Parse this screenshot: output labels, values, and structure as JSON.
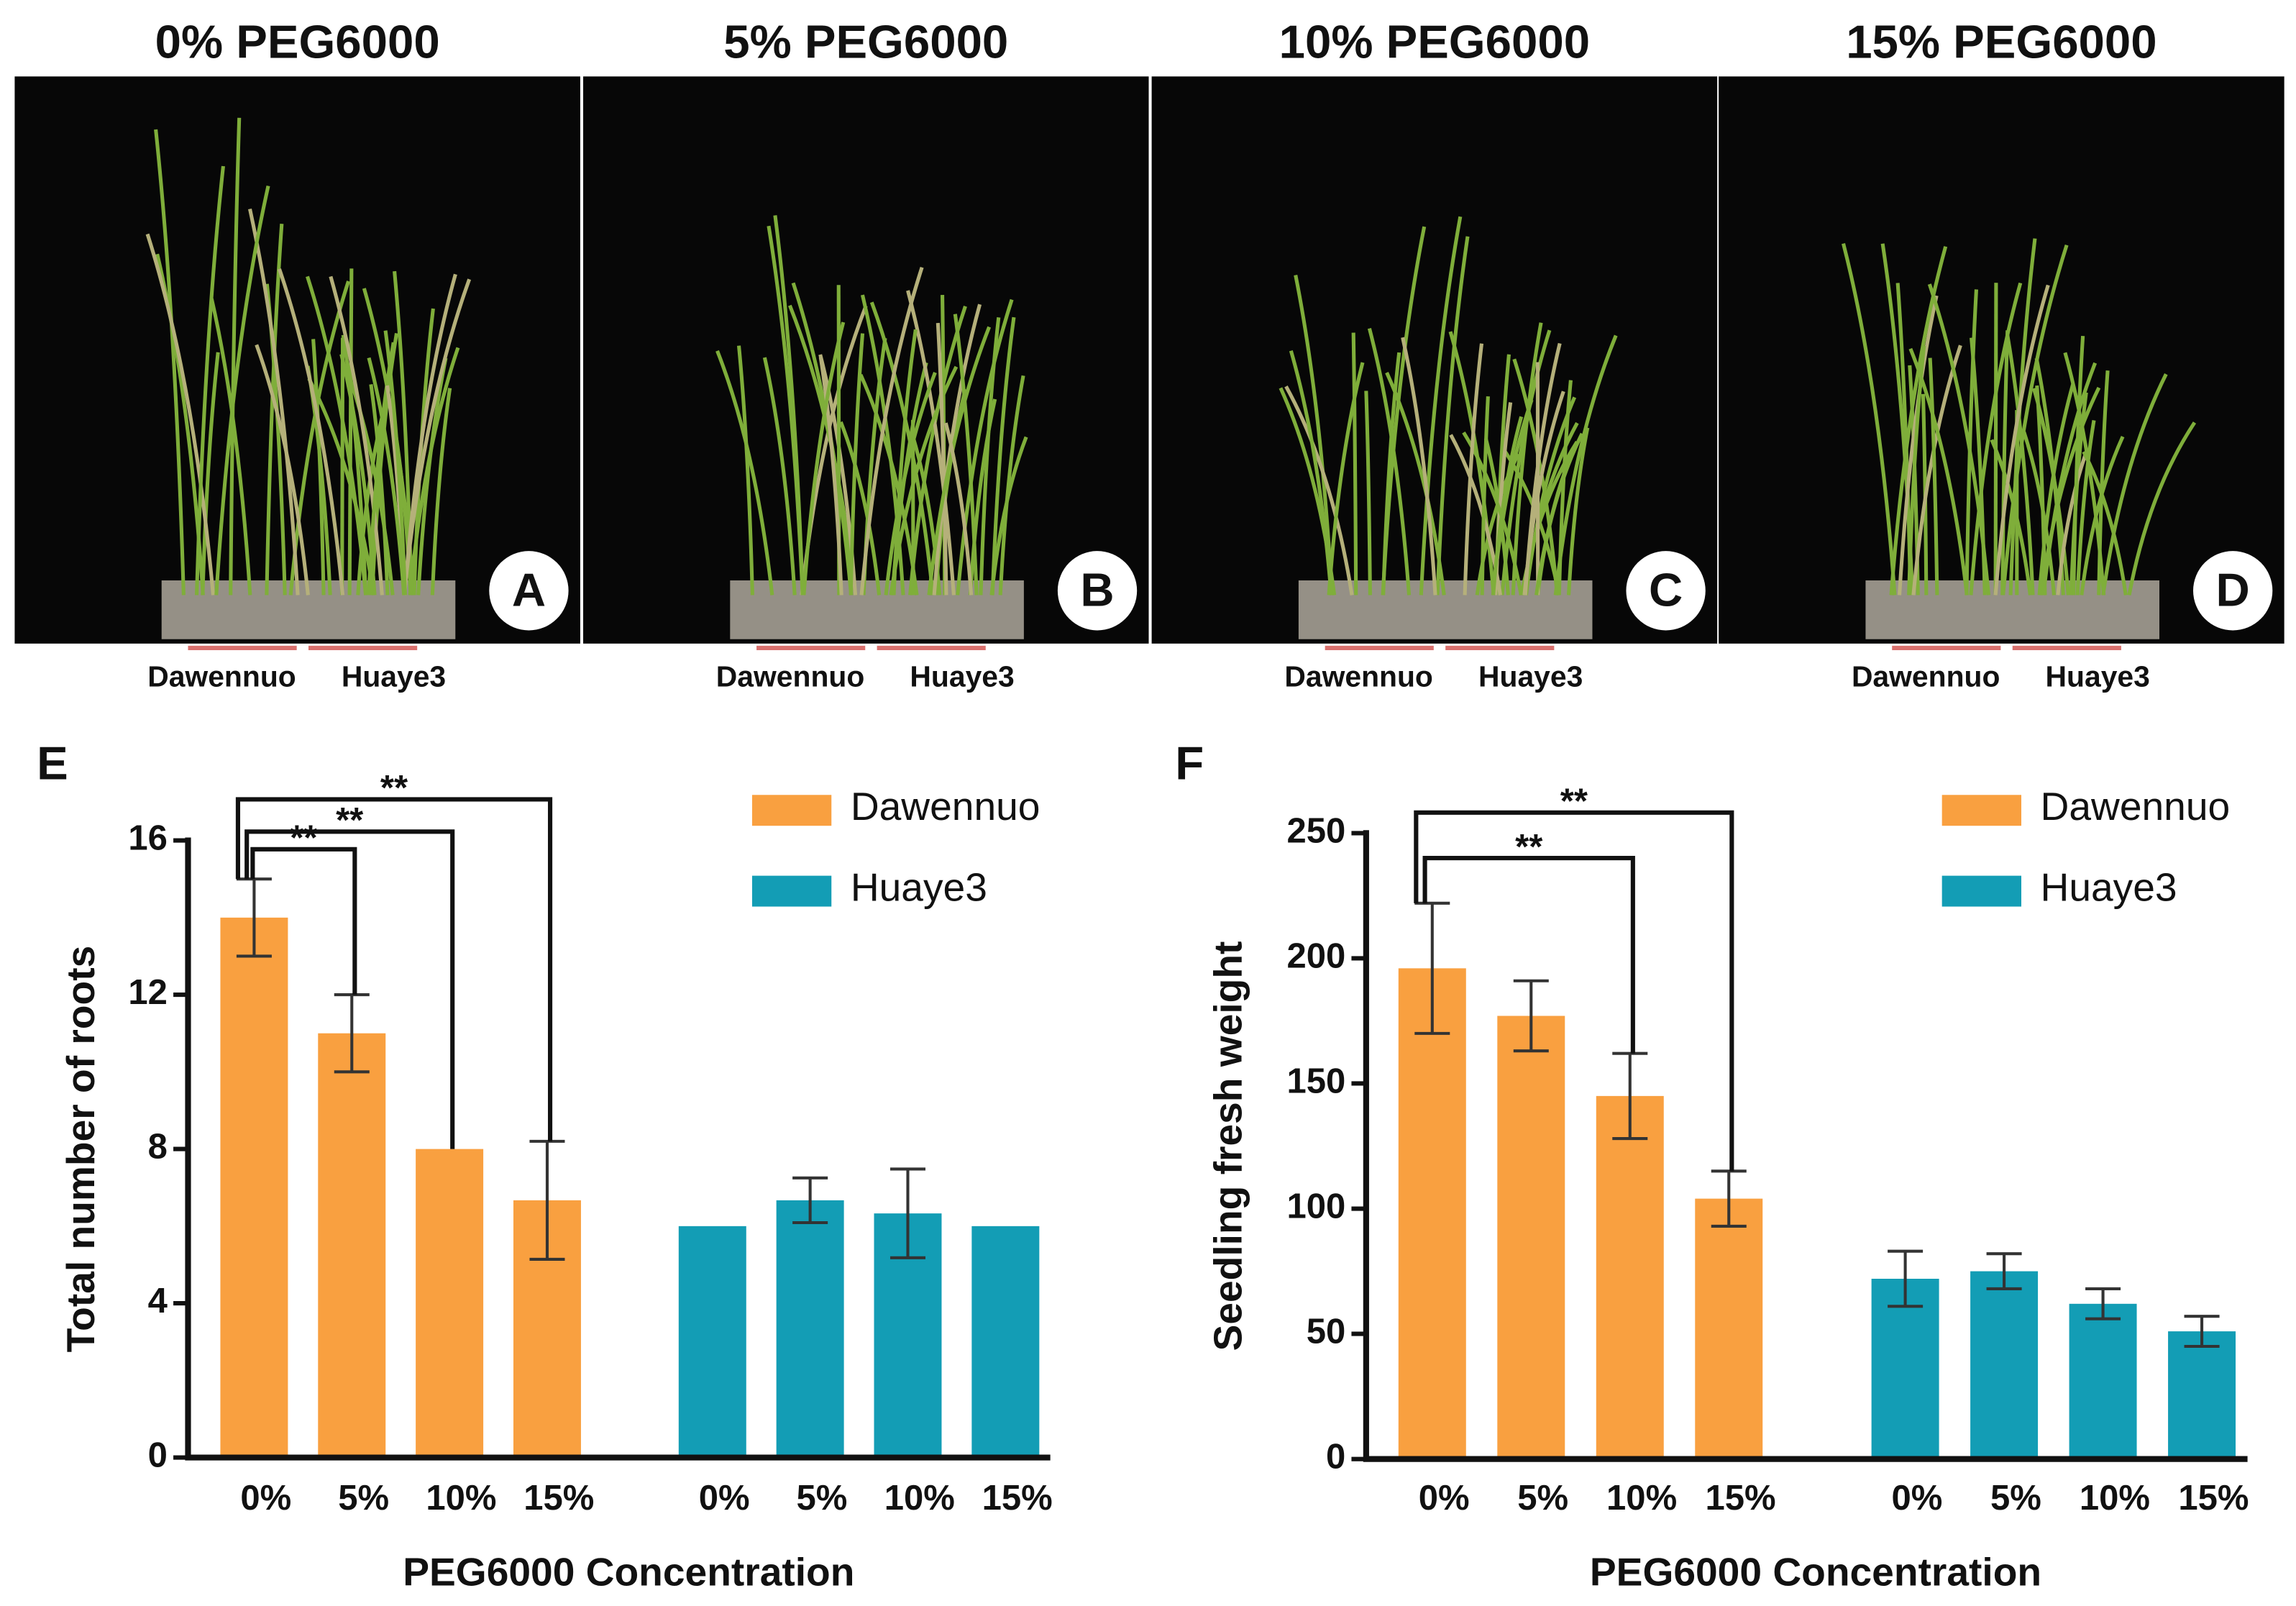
{
  "photos": [
    {
      "title": "0% PEG6000",
      "label": "A",
      "varieties": [
        "Dawennuo",
        "Huaye3"
      ]
    },
    {
      "title": "5% PEG6000",
      "label": "B",
      "varieties": [
        "Dawennuo",
        "Huaye3"
      ]
    },
    {
      "title": "10% PEG6000",
      "label": "C",
      "varieties": [
        "Dawennuo",
        "Huaye3"
      ]
    },
    {
      "title": "15% PEG6000",
      "label": "D",
      "varieties": [
        "Dawennuo",
        "Huaye3"
      ]
    }
  ],
  "chart_data": [
    {
      "type": "bar",
      "panel_label": "E",
      "ylabel": "Total number of roots",
      "xlabel": "PEG6000  Concentration",
      "categories": [
        "0%",
        "5%",
        "10%",
        "15%"
      ],
      "series": [
        {
          "name": "Dawennuo",
          "color": "#f9a040",
          "values": [
            14,
            11,
            8,
            6.67
          ],
          "errors": [
            1,
            1,
            0,
            1.53
          ]
        },
        {
          "name": "Huaye3",
          "color": "#139db5",
          "values": [
            6,
            6.67,
            6.33,
            6
          ],
          "errors": [
            0,
            0.58,
            1.15,
            0
          ]
        }
      ],
      "ylim": [
        0,
        16
      ],
      "yticks": [
        0,
        4,
        8,
        12,
        16
      ],
      "significance": [
        {
          "from": 0,
          "to": 1,
          "label": "**"
        },
        {
          "from": 0,
          "to": 2,
          "label": "**"
        },
        {
          "from": 0,
          "to": 3,
          "label": "**"
        }
      ]
    },
    {
      "type": "bar",
      "panel_label": "F",
      "ylabel": "Seedling fresh weight",
      "xlabel": "PEG6000  Concentration",
      "categories": [
        "0%",
        "5%",
        "10%",
        "15%"
      ],
      "series": [
        {
          "name": "Dawennuo",
          "color": "#f9a040",
          "values": [
            196,
            177,
            145,
            104
          ],
          "errors": [
            26,
            14,
            17,
            11
          ]
        },
        {
          "name": "Huaye3",
          "color": "#139db5",
          "values": [
            72,
            75,
            62,
            51
          ],
          "errors": [
            11,
            7,
            6,
            6
          ]
        }
      ],
      "ylim": [
        0,
        250
      ],
      "yticks": [
        0,
        50,
        100,
        150,
        200,
        250
      ],
      "significance": [
        {
          "from": 0,
          "to": 2,
          "label": "**"
        },
        {
          "from": 0,
          "to": 3,
          "label": "**"
        }
      ]
    }
  ]
}
